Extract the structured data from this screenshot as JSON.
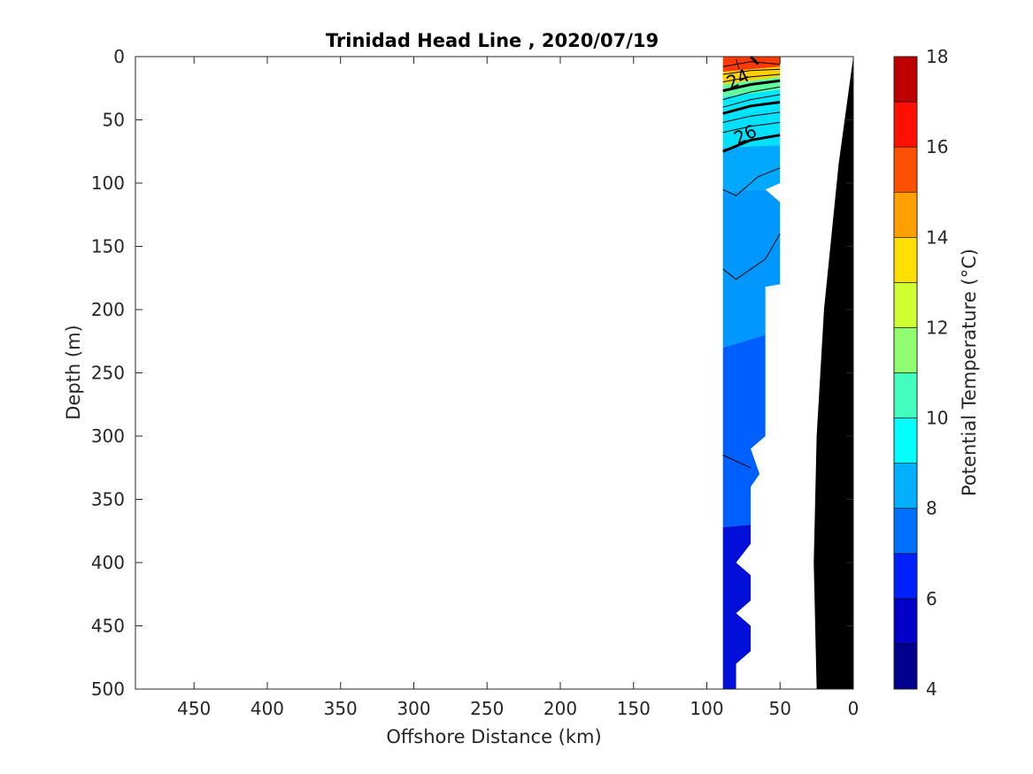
{
  "chart_data": {
    "type": "contour-section",
    "title": "Trinidad Head Line , 2020/07/19",
    "xlabel": "Offshore Distance (km)",
    "ylabel": "Depth (m)",
    "xlim": [
      490,
      0
    ],
    "ylim": [
      500,
      0
    ],
    "x_reversed": true,
    "y_reversed": true,
    "x_ticks": [
      450,
      400,
      350,
      300,
      250,
      200,
      150,
      100,
      50,
      0
    ],
    "y_ticks": [
      0,
      50,
      100,
      150,
      200,
      250,
      300,
      350,
      400,
      450,
      500
    ],
    "grid": false,
    "colorbar": {
      "label": "Potential Temperature (°C)",
      "range": [
        4,
        18
      ],
      "ticks": [
        4,
        6,
        8,
        10,
        12,
        14,
        16,
        18
      ],
      "colors": [
        "#00008f",
        "#0000c8",
        "#0020ff",
        "#0070ff",
        "#00b0ff",
        "#00ffff",
        "#40ffbf",
        "#8fff70",
        "#cfff30",
        "#ffdf00",
        "#ffa000",
        "#ff5000",
        "#ff1000",
        "#bf0000"
      ]
    },
    "contour_labels": [
      {
        "text": "24",
        "x": 77,
        "y": 22
      },
      {
        "text": "26",
        "x": 72,
        "y": 66
      }
    ],
    "temperature_bands": [
      {
        "name": "14-18",
        "polygon": [
          [
            89,
            0
          ],
          [
            50,
            0
          ],
          [
            50,
            8
          ],
          [
            89,
            12
          ]
        ]
      },
      {
        "name": "12-14",
        "polygon": [
          [
            89,
            12
          ],
          [
            50,
            8
          ],
          [
            50,
            16
          ],
          [
            89,
            22
          ]
        ]
      },
      {
        "name": "10-12",
        "polygon": [
          [
            89,
            22
          ],
          [
            50,
            16
          ],
          [
            50,
            26
          ],
          [
            89,
            32
          ]
        ]
      },
      {
        "name": "9-10",
        "polygon": [
          [
            89,
            32
          ],
          [
            50,
            26
          ],
          [
            50,
            40
          ],
          [
            89,
            46
          ]
        ]
      },
      {
        "name": "8-9",
        "polygon": [
          [
            89,
            46
          ],
          [
            50,
            40
          ],
          [
            50,
            70
          ],
          [
            89,
            72
          ]
        ]
      },
      {
        "name": "7-8 upper",
        "polygon": [
          [
            89,
            72
          ],
          [
            50,
            70
          ],
          [
            50,
            100
          ],
          [
            60,
            105
          ],
          [
            89,
            106
          ]
        ]
      },
      {
        "name": "7-8 lower",
        "polygon": [
          [
            89,
            106
          ],
          [
            60,
            105
          ],
          [
            50,
            115
          ],
          [
            50,
            180
          ],
          [
            60,
            182
          ],
          [
            60,
            220
          ],
          [
            89,
            230
          ]
        ]
      },
      {
        "name": "6-7",
        "polygon": [
          [
            89,
            230
          ],
          [
            60,
            220
          ],
          [
            60,
            300
          ],
          [
            70,
            310
          ],
          [
            64,
            330
          ],
          [
            70,
            340
          ],
          [
            70,
            370
          ],
          [
            89,
            372
          ]
        ]
      },
      {
        "name": "5-6",
        "polygon": [
          [
            89,
            372
          ],
          [
            70,
            370
          ],
          [
            70,
            385
          ],
          [
            80,
            400
          ],
          [
            70,
            410
          ],
          [
            70,
            430
          ],
          [
            80,
            440
          ],
          [
            70,
            450
          ],
          [
            70,
            470
          ],
          [
            80,
            480
          ],
          [
            80,
            500
          ],
          [
            89,
            500
          ]
        ]
      }
    ],
    "bathymetry": {
      "fill": "#000000",
      "points": [
        [
          0,
          0
        ],
        [
          10,
          85
        ],
        [
          20,
          200
        ],
        [
          25,
          300
        ],
        [
          27,
          400
        ],
        [
          25,
          500
        ]
      ]
    }
  }
}
